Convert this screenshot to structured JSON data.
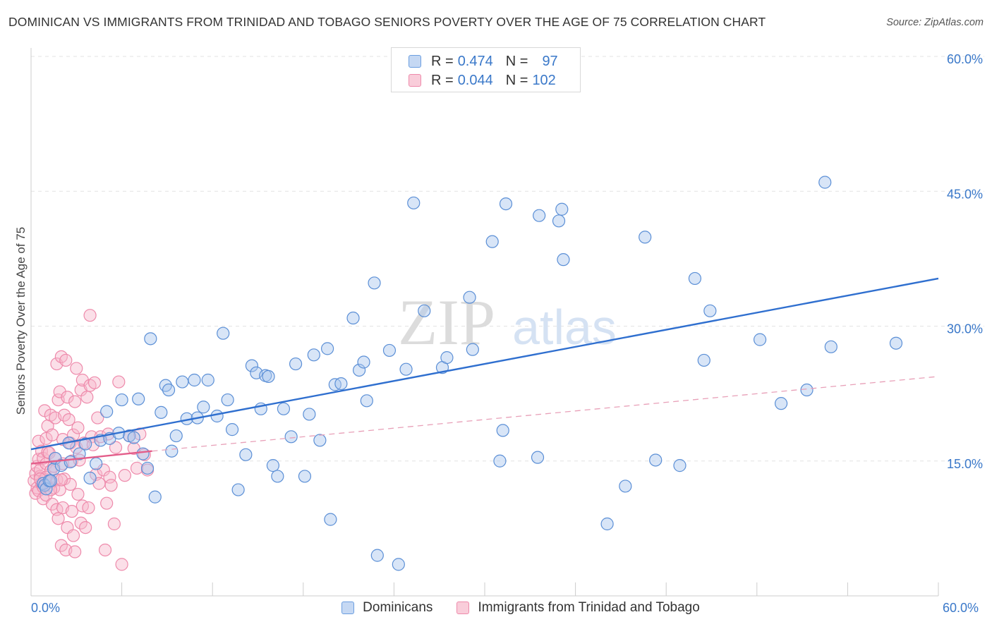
{
  "title": "DOMINICAN VS IMMIGRANTS FROM TRINIDAD AND TOBAGO SENIORS POVERTY OVER THE AGE OF 75 CORRELATION CHART",
  "source": "Source: ZipAtlas.com",
  "watermark": {
    "zip": "ZIP",
    "atlas": "atlas"
  },
  "legend_stats": [
    {
      "r_label": "R =",
      "r_value": "0.474",
      "n_label": "N =",
      "n_value": "97",
      "color": "#5b8fd6"
    },
    {
      "r_label": "R =",
      "r_value": "0.044",
      "n_label": "N =",
      "n_value": "102",
      "color": "#ee82a4"
    }
  ],
  "chart_data": {
    "type": "scatter",
    "title": "DOMINICAN VS IMMIGRANTS FROM TRINIDAD AND TOBAGO SENIORS POVERTY OVER THE AGE OF 75 CORRELATION CHART",
    "xlabel": "",
    "ylabel": "Seniors Poverty Over the Age of 75",
    "xlim": [
      0,
      60
    ],
    "ylim": [
      0,
      60
    ],
    "x_tick_labels": [
      "0.0%",
      "60.0%"
    ],
    "y_tick_labels": [
      "15.0%",
      "30.0%",
      "45.0%",
      "60.0%"
    ],
    "y_ticks": [
      15,
      30,
      45,
      60
    ],
    "grid": true,
    "series": [
      {
        "name": "Dominicans",
        "color": "#6b9ee0",
        "trend": {
          "x1": 0,
          "y1": 16.3,
          "x2": 60,
          "y2": 35.3,
          "style": "solid",
          "color": "#2f6fcf"
        },
        "points": [
          [
            0.8,
            12.5
          ],
          [
            0.9,
            12.3
          ],
          [
            1.0,
            11.9
          ],
          [
            1.2,
            12.8
          ],
          [
            1.3,
            12.8
          ],
          [
            1.5,
            14.1
          ],
          [
            1.6,
            15.3
          ],
          [
            2.0,
            14.5
          ],
          [
            2.5,
            17.0
          ],
          [
            2.6,
            14.9
          ],
          [
            3.2,
            15.8
          ],
          [
            3.6,
            16.9
          ],
          [
            3.9,
            13.1
          ],
          [
            4.3,
            14.7
          ],
          [
            4.6,
            17.3
          ],
          [
            5.0,
            20.5
          ],
          [
            5.2,
            17.5
          ],
          [
            5.8,
            18.1
          ],
          [
            6.0,
            21.8
          ],
          [
            6.5,
            17.8
          ],
          [
            6.8,
            17.6
          ],
          [
            7.1,
            21.9
          ],
          [
            7.4,
            15.8
          ],
          [
            7.7,
            14.2
          ],
          [
            7.9,
            28.6
          ],
          [
            8.2,
            11.0
          ],
          [
            8.6,
            20.4
          ],
          [
            8.9,
            23.4
          ],
          [
            9.3,
            16.1
          ],
          [
            9.6,
            17.8
          ],
          [
            10.0,
            23.8
          ],
          [
            10.3,
            19.7
          ],
          [
            10.8,
            24.0
          ],
          [
            11.0,
            19.8
          ],
          [
            11.4,
            21.0
          ],
          [
            11.7,
            24.0
          ],
          [
            12.3,
            20.0
          ],
          [
            12.7,
            29.2
          ],
          [
            13.0,
            21.8
          ],
          [
            13.3,
            18.5
          ],
          [
            13.7,
            11.8
          ],
          [
            14.2,
            15.7
          ],
          [
            14.6,
            25.6
          ],
          [
            14.9,
            24.8
          ],
          [
            15.2,
            20.8
          ],
          [
            15.5,
            24.5
          ],
          [
            16.0,
            14.5
          ],
          [
            16.3,
            13.3
          ],
          [
            16.7,
            20.8
          ],
          [
            17.2,
            17.7
          ],
          [
            17.5,
            25.8
          ],
          [
            18.1,
            13.3
          ],
          [
            18.4,
            20.2
          ],
          [
            18.7,
            26.8
          ],
          [
            19.1,
            17.3
          ],
          [
            19.6,
            27.5
          ],
          [
            19.8,
            8.5
          ],
          [
            20.1,
            23.5
          ],
          [
            20.5,
            23.6
          ],
          [
            21.3,
            30.9
          ],
          [
            21.7,
            25.1
          ],
          [
            22.0,
            26.0
          ],
          [
            22.2,
            21.7
          ],
          [
            22.7,
            34.8
          ],
          [
            22.9,
            4.5
          ],
          [
            23.7,
            27.3
          ],
          [
            24.3,
            3.5
          ],
          [
            24.8,
            25.2
          ],
          [
            25.3,
            43.7
          ],
          [
            26.0,
            31.7
          ],
          [
            27.2,
            25.4
          ],
          [
            27.5,
            26.5
          ],
          [
            29.0,
            33.2
          ],
          [
            29.2,
            27.4
          ],
          [
            30.5,
            39.4
          ],
          [
            31.0,
            15.0
          ],
          [
            31.2,
            18.4
          ],
          [
            31.4,
            43.6
          ],
          [
            33.5,
            15.4
          ],
          [
            33.6,
            42.3
          ],
          [
            34.9,
            41.7
          ],
          [
            35.1,
            43.0
          ],
          [
            35.2,
            37.4
          ],
          [
            38.1,
            8.0
          ],
          [
            39.3,
            12.2
          ],
          [
            40.6,
            39.9
          ],
          [
            41.3,
            15.1
          ],
          [
            42.9,
            14.5
          ],
          [
            43.9,
            35.3
          ],
          [
            44.5,
            26.2
          ],
          [
            44.9,
            31.7
          ],
          [
            48.2,
            28.5
          ],
          [
            49.6,
            21.4
          ],
          [
            51.3,
            22.9
          ],
          [
            52.5,
            46.0
          ],
          [
            52.9,
            27.7
          ],
          [
            57.2,
            28.1
          ],
          [
            15.7,
            24.4
          ],
          [
            9.1,
            22.9
          ]
        ]
      },
      {
        "name": "Immigrants from Trinidad and Tobago",
        "color": "#ee8aab",
        "trend": {
          "x1": 0,
          "y1": 14.7,
          "x2": 8,
          "y2": 16.1,
          "style": "solid",
          "color": "#e35d8a"
        },
        "trend_extended": {
          "x1": 8,
          "y1": 16.1,
          "x2": 60,
          "y2": 24.4,
          "style": "dashed",
          "color": "#e8a0b8"
        },
        "points": [
          [
            0.2,
            12.8
          ],
          [
            0.3,
            11.4
          ],
          [
            0.3,
            13.6
          ],
          [
            0.4,
            14.4
          ],
          [
            0.4,
            12.0
          ],
          [
            0.5,
            15.2
          ],
          [
            0.5,
            17.2
          ],
          [
            0.5,
            11.7
          ],
          [
            0.6,
            13.3
          ],
          [
            0.6,
            14.0
          ],
          [
            0.7,
            12.5
          ],
          [
            0.7,
            16.1
          ],
          [
            0.8,
            15.3
          ],
          [
            0.8,
            10.8
          ],
          [
            0.8,
            12.1
          ],
          [
            0.9,
            20.6
          ],
          [
            0.9,
            13.0
          ],
          [
            1.0,
            17.5
          ],
          [
            1.0,
            14.7
          ],
          [
            1.0,
            11.2
          ],
          [
            1.1,
            18.9
          ],
          [
            1.1,
            16.0
          ],
          [
            1.2,
            15.9
          ],
          [
            1.2,
            12.6
          ],
          [
            1.3,
            20.1
          ],
          [
            1.3,
            13.9
          ],
          [
            1.4,
            10.2
          ],
          [
            1.4,
            17.9
          ],
          [
            1.5,
            12.0
          ],
          [
            1.5,
            14.4
          ],
          [
            1.6,
            19.8
          ],
          [
            1.6,
            15.3
          ],
          [
            1.7,
            9.6
          ],
          [
            1.7,
            12.9
          ],
          [
            1.7,
            25.8
          ],
          [
            1.8,
            21.8
          ],
          [
            1.8,
            8.6
          ],
          [
            1.9,
            22.7
          ],
          [
            1.9,
            11.8
          ],
          [
            2.0,
            26.6
          ],
          [
            2.0,
            5.6
          ],
          [
            2.1,
            17.4
          ],
          [
            2.1,
            14.7
          ],
          [
            2.1,
            9.8
          ],
          [
            2.2,
            20.1
          ],
          [
            2.2,
            13.0
          ],
          [
            2.3,
            26.2
          ],
          [
            2.3,
            5.1
          ],
          [
            2.4,
            22.1
          ],
          [
            2.4,
            7.6
          ],
          [
            2.5,
            19.6
          ],
          [
            2.6,
            12.4
          ],
          [
            2.6,
            17.0
          ],
          [
            2.7,
            15.0
          ],
          [
            2.7,
            9.4
          ],
          [
            2.8,
            17.9
          ],
          [
            2.8,
            6.7
          ],
          [
            2.9,
            21.6
          ],
          [
            2.9,
            4.9
          ],
          [
            3.0,
            16.5
          ],
          [
            3.0,
            25.3
          ],
          [
            3.1,
            18.7
          ],
          [
            3.1,
            11.3
          ],
          [
            3.2,
            15.1
          ],
          [
            3.3,
            22.9
          ],
          [
            3.3,
            8.1
          ],
          [
            3.4,
            24.0
          ],
          [
            3.4,
            10.0
          ],
          [
            3.5,
            17.0
          ],
          [
            3.6,
            7.6
          ],
          [
            3.7,
            22.1
          ],
          [
            3.8,
            9.8
          ],
          [
            3.9,
            31.2
          ],
          [
            3.9,
            23.4
          ],
          [
            4.0,
            17.7
          ],
          [
            4.1,
            16.8
          ],
          [
            4.2,
            23.7
          ],
          [
            4.3,
            13.5
          ],
          [
            4.4,
            19.8
          ],
          [
            4.5,
            12.5
          ],
          [
            4.6,
            17.7
          ],
          [
            4.8,
            14.0
          ],
          [
            4.9,
            5.1
          ],
          [
            5.0,
            10.3
          ],
          [
            5.1,
            18.0
          ],
          [
            5.2,
            13.2
          ],
          [
            5.3,
            12.3
          ],
          [
            5.5,
            8.0
          ],
          [
            5.6,
            16.5
          ],
          [
            5.8,
            23.8
          ],
          [
            6.0,
            3.5
          ],
          [
            6.2,
            13.4
          ],
          [
            6.5,
            17.8
          ],
          [
            6.8,
            16.4
          ],
          [
            7.0,
            14.2
          ],
          [
            7.2,
            18.0
          ],
          [
            7.5,
            15.7
          ],
          [
            7.7,
            14.0
          ],
          [
            1.0,
            13.2
          ],
          [
            1.3,
            11.8
          ],
          [
            2.0,
            12.9
          ],
          [
            0.6,
            13.0
          ]
        ]
      }
    ]
  }
}
